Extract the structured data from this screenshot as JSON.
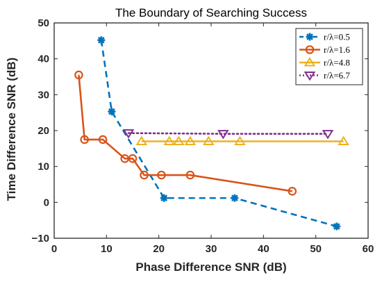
{
  "chart_data": {
    "type": "line",
    "title": "The Boundary of Searching Success",
    "xlabel": "Phase Difference SNR (dB)",
    "ylabel": "Time Difference SNR (dB)",
    "xlim": [
      0,
      60
    ],
    "ylim": [
      -10,
      50
    ],
    "xticks": [
      0,
      10,
      20,
      30,
      40,
      50,
      60
    ],
    "yticks": [
      -10,
      0,
      10,
      20,
      30,
      40,
      50
    ],
    "xtick_labels": [
      "0",
      "10",
      "20",
      "30",
      "40",
      "50",
      "60"
    ],
    "ytick_labels": [
      "−10",
      "0",
      "10",
      "20",
      "30",
      "40",
      "50"
    ],
    "grid": false,
    "legend_position": "top-right",
    "series": [
      {
        "name": "r/λ=0.5",
        "color": "#0072BD",
        "line": "dashed",
        "marker": "asterisk",
        "x": [
          9,
          11,
          21,
          34.5,
          54
        ],
        "y": [
          45.2,
          25.3,
          1.2,
          1.2,
          -6.7
        ]
      },
      {
        "name": "r/λ=1.6",
        "color": "#D95319",
        "line": "solid",
        "marker": "circle",
        "x": [
          4.7,
          5.8,
          9.3,
          13.5,
          15,
          17.2,
          20.5,
          26,
          45.5
        ],
        "y": [
          35.5,
          17.5,
          17.5,
          12.2,
          12.2,
          7.6,
          7.6,
          7.6,
          3.1
        ]
      },
      {
        "name": "r/λ=4.8",
        "color": "#EDB120",
        "line": "solid",
        "marker": "triangle-up",
        "x": [
          16.7,
          22,
          23.8,
          26,
          29.5,
          35.5,
          55.3
        ],
        "y": [
          17,
          17,
          17,
          17,
          17,
          17,
          17
        ]
      },
      {
        "name": "r/λ=6.7",
        "color": "#7E2F8E",
        "line": "dotted",
        "marker": "triangle-down",
        "x": [
          14.2,
          32.3,
          52.3
        ],
        "y": [
          19.3,
          19.1,
          19.1
        ]
      }
    ]
  }
}
